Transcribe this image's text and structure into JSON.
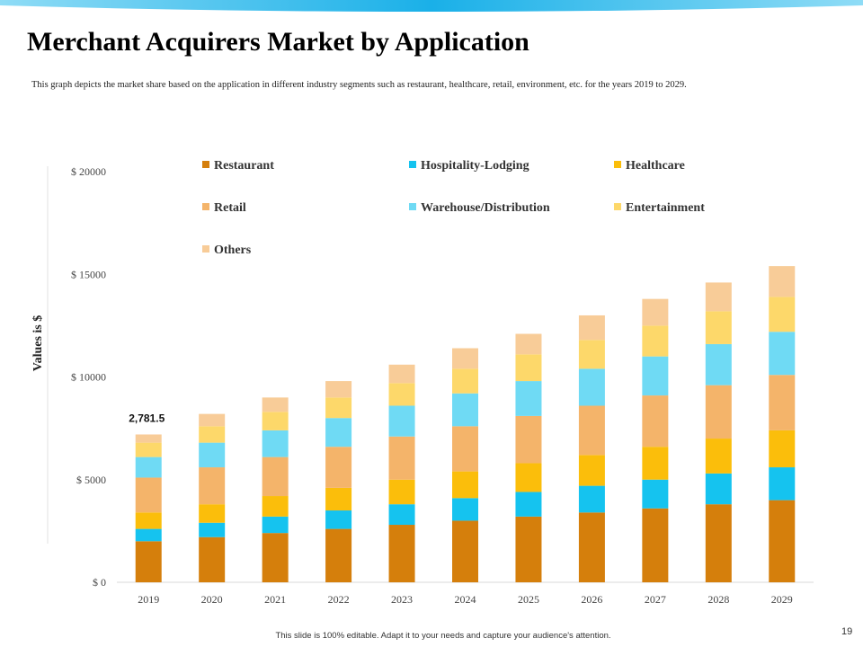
{
  "slide": {
    "title": "Merchant Acquirers Market by Application",
    "subtitle": "This graph depicts the market share based on the application in different industry segments such as restaurant, healthcare,  retail, environment, etc. for the years 2019 to 2029.",
    "footer": "This slide is 100% editable.  Adapt it to your needs and capture your audience's attention.",
    "page_number": "19",
    "accent_color": "#1ab0e8"
  },
  "chart_data": {
    "type": "bar",
    "stacked": true,
    "categories": [
      "2019",
      "2020",
      "2021",
      "2022",
      "2023",
      "2024",
      "2025",
      "2026",
      "2027",
      "2028",
      "2029"
    ],
    "ylabel": "Values is $",
    "ylim": [
      0,
      20000
    ],
    "yticks": [
      0,
      5000,
      10000,
      15000,
      20000
    ],
    "ytick_labels": [
      "$ 0",
      "$ 5000",
      "$ 10000",
      "$ 15000",
      "$ 20000"
    ],
    "legend_position": "top",
    "grid": false,
    "series": [
      {
        "name": "Restaurant",
        "color": "#d57f0c",
        "values": [
          2000,
          2200,
          2400,
          2600,
          2800,
          3000,
          3200,
          3400,
          3600,
          3800,
          4000
        ]
      },
      {
        "name": "Hospitality-Lodging",
        "color": "#15c3ef",
        "values": [
          600,
          700,
          800,
          900,
          1000,
          1100,
          1200,
          1300,
          1400,
          1500,
          1600
        ]
      },
      {
        "name": "Healthcare",
        "color": "#fbbe0b",
        "values": [
          800,
          900,
          1000,
          1100,
          1200,
          1300,
          1400,
          1500,
          1600,
          1700,
          1800
        ]
      },
      {
        "name": "Retail",
        "color": "#f4b46a",
        "values": [
          1700,
          1800,
          1900,
          2000,
          2100,
          2200,
          2300,
          2400,
          2500,
          2600,
          2700
        ]
      },
      {
        "name": "Warehouse/Distribution",
        "color": "#6fdaf4",
        "values": [
          1000,
          1200,
          1300,
          1400,
          1500,
          1600,
          1700,
          1800,
          1900,
          2000,
          2100
        ]
      },
      {
        "name": "Entertainment",
        "color": "#fdd86a",
        "values": [
          700,
          800,
          900,
          1000,
          1100,
          1200,
          1300,
          1400,
          1500,
          1600,
          1700
        ]
      },
      {
        "name": "Others",
        "color": "#f8cc98",
        "values": [
          400,
          600,
          700,
          800,
          900,
          1000,
          1000,
          1200,
          1300,
          1400,
          1500
        ]
      }
    ],
    "annotations": [
      {
        "category": "2019",
        "text": "2,781.5"
      }
    ]
  }
}
